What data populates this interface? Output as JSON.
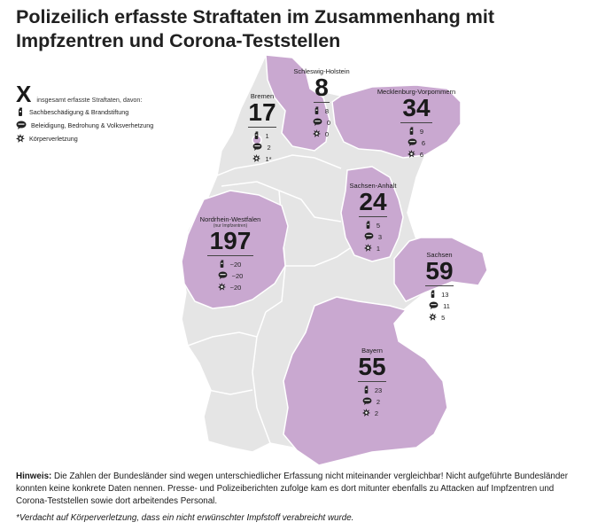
{
  "title": "Polizeilich erfasste Straftaten im Zusammenhang mit Impfzentren und Corona-Teststellen",
  "legend": {
    "symbol": "X",
    "intro": "insgesamt erfasste Straftaten, davon:",
    "items": [
      {
        "icon": "fire-extinguisher-icon",
        "label": "Sachbeschädigung & Brandstiftung"
      },
      {
        "icon": "speech-bubble-icon",
        "label": "Beleidigung, Bedrohung & Volksverhetzung"
      },
      {
        "icon": "explosion-icon",
        "label": "Körperverletzung"
      }
    ]
  },
  "colors": {
    "highlight": "#c9a8d0",
    "base": "#e5e5e5",
    "border": "#ffffff"
  },
  "states": {
    "schleswig_holstein": {
      "name": "Schleswig-Holstein",
      "total": "8",
      "property": "8",
      "insult": "0",
      "injury": "0"
    },
    "mecklenburg": {
      "name": "Mecklenburg-Vorpommern",
      "total": "34",
      "property": "9",
      "insult": "6",
      "injury": "6"
    },
    "bremen": {
      "name": "Bremen",
      "total": "17",
      "property": "1",
      "insult": "2",
      "injury": "1*"
    },
    "sachsen_anhalt": {
      "name": "Sachsen-Anhalt",
      "total": "24",
      "property": "5",
      "insult": "3",
      "injury": "1"
    },
    "nrw": {
      "name": "Nordrhein-Westfalen",
      "note": "(nur Impfzentren)",
      "total": "197",
      "property": "~20",
      "insult": "~20",
      "injury": "~20"
    },
    "sachsen": {
      "name": "Sachsen",
      "total": "59",
      "property": "13",
      "insult": "11",
      "injury": "5"
    },
    "bayern": {
      "name": "Bayern",
      "total": "55",
      "property": "23",
      "insult": "2",
      "injury": "2"
    }
  },
  "footer": {
    "hint_label": "Hinweis:",
    "hint_text": "Die Zahlen der Bundesländer sind wegen unterschiedlicher Erfassung nicht miteinander vergleichbar! Nicht aufgeführte Bundesländer konnten keine konkrete Daten nennen. Presse- und Polizeiberichten zufolge kam es dort mitunter ebenfalls zu Attacken auf Impfzentren und Corona-Teststellen sowie dort arbeitendes Personal.",
    "footnote": "*Verdacht auf Körperverletzung, dass ein nicht erwünschter Impfstoff verabreicht wurde."
  }
}
